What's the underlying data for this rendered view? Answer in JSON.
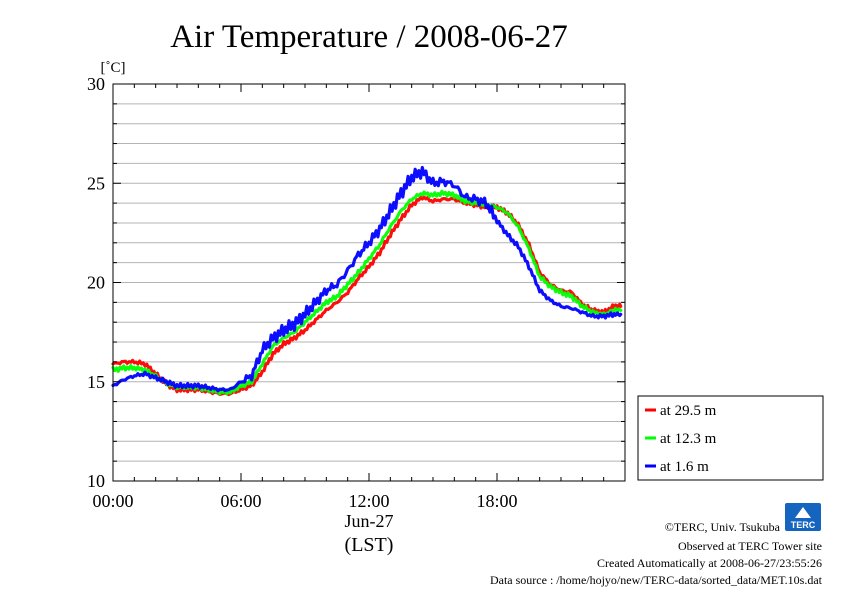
{
  "chart_data": {
    "type": "line",
    "title": "Air Temperature / 2008-06-27",
    "ylabel": "[˚C]",
    "xlabel_date": "Jun-27",
    "xlabel_tz": "(LST)",
    "ylim": [
      10,
      30
    ],
    "xlim": [
      0,
      24
    ],
    "yticks": [
      "10",
      "15",
      "20",
      "25",
      "30"
    ],
    "xticks": [
      "00:00",
      "06:00",
      "12:00",
      "18:00"
    ],
    "xtick_values": [
      0,
      6,
      12,
      18
    ],
    "grid": true,
    "legend_position": "right-bottom",
    "x": [
      0,
      0.5,
      1,
      1.5,
      2,
      2.5,
      3,
      3.5,
      4,
      4.5,
      5,
      5.5,
      6,
      6.5,
      7,
      7.5,
      8,
      8.5,
      9,
      9.5,
      10,
      10.5,
      11,
      11.5,
      12,
      12.5,
      13,
      13.5,
      14,
      14.5,
      15,
      15.5,
      16,
      16.5,
      17,
      17.5,
      18,
      18.5,
      19,
      19.5,
      20,
      20.5,
      21,
      21.5,
      22,
      22.5,
      23,
      23.5,
      23.8
    ],
    "series": [
      {
        "name": "at 29.5 m",
        "color": "#ff0000",
        "values": [
          15.9,
          16.0,
          16.0,
          15.9,
          15.4,
          14.9,
          14.6,
          14.6,
          14.6,
          14.5,
          14.4,
          14.4,
          14.6,
          14.8,
          15.5,
          16.4,
          16.9,
          17.2,
          17.6,
          18.1,
          18.6,
          19.0,
          19.5,
          20.2,
          20.8,
          21.5,
          22.4,
          23.2,
          23.9,
          24.3,
          24.1,
          24.2,
          24.2,
          24.0,
          23.9,
          23.8,
          23.8,
          23.5,
          22.9,
          21.9,
          20.5,
          19.9,
          19.6,
          19.5,
          18.9,
          18.6,
          18.5,
          18.8,
          18.8
        ]
      },
      {
        "name": "at 12.3 m",
        "color": "#00ff00",
        "values": [
          15.6,
          15.7,
          15.7,
          15.6,
          15.3,
          14.9,
          14.7,
          14.7,
          14.7,
          14.6,
          14.5,
          14.5,
          14.8,
          15.0,
          15.9,
          16.8,
          17.2,
          17.5,
          18.0,
          18.5,
          19.0,
          19.3,
          19.9,
          20.5,
          21.2,
          21.9,
          22.8,
          23.6,
          24.2,
          24.5,
          24.4,
          24.5,
          24.4,
          24.1,
          24.0,
          23.9,
          23.8,
          23.5,
          22.8,
          21.7,
          20.3,
          19.8,
          19.5,
          19.3,
          18.8,
          18.5,
          18.4,
          18.6,
          18.6
        ]
      },
      {
        "name": "at 1.6 m",
        "color": "#0000ff",
        "values": [
          14.8,
          15.1,
          15.3,
          15.4,
          15.2,
          15.0,
          14.8,
          14.8,
          14.8,
          14.7,
          14.6,
          14.6,
          15.0,
          15.3,
          16.6,
          17.2,
          17.6,
          17.9,
          18.4,
          19.0,
          19.6,
          19.9,
          20.6,
          21.4,
          22.0,
          22.7,
          23.6,
          24.5,
          25.3,
          25.6,
          25.0,
          25.1,
          24.9,
          24.3,
          24.2,
          24.0,
          23.1,
          22.4,
          21.8,
          20.8,
          19.6,
          19.1,
          18.8,
          18.7,
          18.5,
          18.3,
          18.3,
          18.4,
          18.4
        ]
      }
    ]
  },
  "credits": {
    "copyright": "©TERC, Univ. Tsukuba",
    "observed": "Observed at TERC Tower site",
    "created": "Created Automatically at 2008-06-27/23:55:26",
    "source": "Data source : /home/hojyo/new/TERC-data/sorted_data/MET.10s.dat",
    "logo_text": "TERC"
  }
}
